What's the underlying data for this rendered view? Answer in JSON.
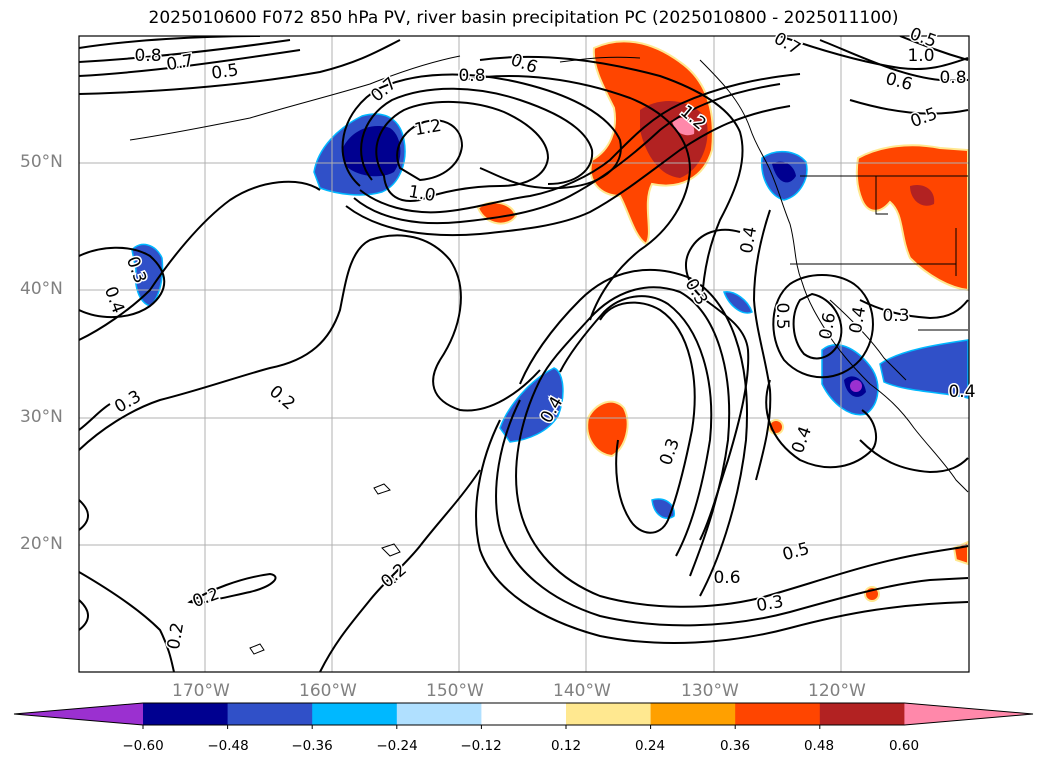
{
  "title": "2025010600 F072 850 hPa PV, river basin precipitation PC (2025010800 - 2025011100)",
  "lat_labels": [
    "50°N",
    "40°N",
    "30°N",
    "20°N"
  ],
  "lon_labels": [
    "170°W",
    "160°W",
    "150°W",
    "140°W",
    "130°W",
    "120°W"
  ],
  "colorbar": {
    "ticks": [
      "−0.60",
      "−0.48",
      "−0.36",
      "−0.24",
      "−0.12",
      "0.12",
      "0.24",
      "0.36",
      "0.48",
      "0.60"
    ],
    "colors": [
      "#9b30d0",
      "#000090",
      "#3050c8",
      "#00b8ff",
      "#b0e0ff",
      "#ffffff",
      "#ffe890",
      "#ffa000",
      "#ff4500",
      "#b22222",
      "#ff88aa"
    ]
  },
  "contour_labels": [
    "0.8",
    "0.7",
    "0.5",
    "0.7",
    "0.8",
    "0.6",
    "1.2",
    "1.0",
    "0.7",
    "1.0",
    "0.6",
    "0.8",
    "0.5",
    "0.4",
    "0.3",
    "0.5",
    "0.3",
    "0.4",
    "0.3",
    "0.2",
    "0.4",
    "0.3",
    "0.4",
    "0.3",
    "0.6",
    "0.5",
    "0.3",
    "0.2",
    "0.2",
    "0.2",
    "0.5",
    "0.6",
    "0.4",
    "1.2",
    "0.4"
  ],
  "map_extent": {
    "lon": [
      -180,
      -110
    ],
    "lat": [
      10,
      60
    ]
  }
}
